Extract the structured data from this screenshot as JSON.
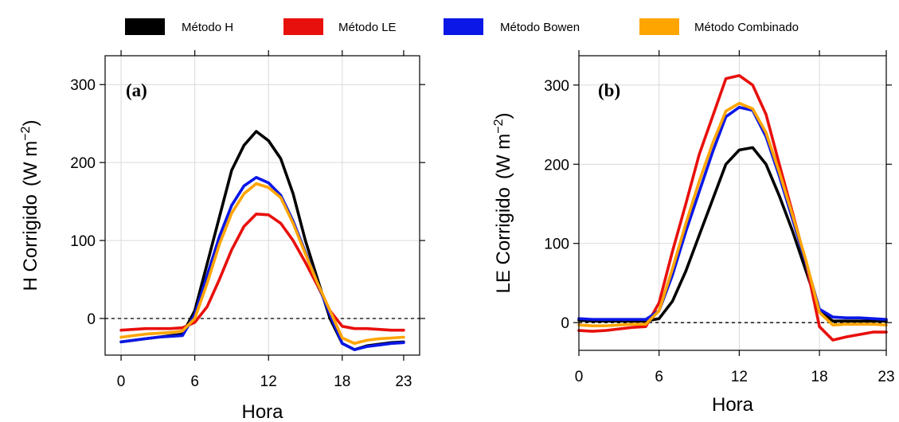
{
  "legend": [
    {
      "label": "Método H",
      "color": "#000000"
    },
    {
      "label": "Método LE",
      "color": "#e8100c"
    },
    {
      "label": "Método Bowen",
      "color": "#0a17e6"
    },
    {
      "label": "Método Combinado",
      "color": "#ffa500"
    }
  ],
  "chart_data": [
    {
      "type": "line",
      "panel_label": "(a)",
      "xlabel": "Hora",
      "ylabel_main": "H  Corrigido",
      "ylabel_unit": "(W m",
      "ylabel_exp": "−2",
      "ylabel_close": ")",
      "x": [
        0,
        1,
        2,
        3,
        4,
        5,
        6,
        7,
        8,
        9,
        10,
        11,
        12,
        13,
        14,
        15,
        16,
        17,
        18,
        19,
        20,
        21,
        22,
        23
      ],
      "xlim": [
        -1.3,
        24.3
      ],
      "ylim": [
        -47,
        337
      ],
      "xticks": [
        0,
        6,
        12,
        18,
        23
      ],
      "xtick_labels": [
        "0",
        "6",
        "12",
        "18",
        "23"
      ],
      "yticks": [
        0,
        100,
        200,
        300
      ],
      "ytick_labels": [
        "0",
        "100",
        "200",
        "300"
      ],
      "grid_x": [
        0,
        6,
        12,
        18
      ],
      "grid_y": [
        0,
        100,
        200,
        300
      ],
      "zero_line": true,
      "series": [
        {
          "name": "Método H",
          "color": "#000000",
          "values": [
            -30,
            -28,
            -26,
            -24,
            -22,
            -20,
            10,
            70,
            130,
            190,
            222,
            240,
            228,
            205,
            160,
            100,
            50,
            0,
            -32,
            -40,
            -35,
            -33,
            -31,
            -30
          ]
        },
        {
          "name": "Método LE",
          "color": "#e8100c",
          "values": [
            -15,
            -14,
            -13,
            -13,
            -13,
            -12,
            -5,
            15,
            50,
            88,
            118,
            134,
            133,
            122,
            100,
            72,
            42,
            10,
            -10,
            -13,
            -13,
            -14,
            -15,
            -15
          ]
        },
        {
          "name": "Método Bowen",
          "color": "#0a17e6",
          "values": [
            -30,
            -28,
            -26,
            -24,
            -23,
            -22,
            5,
            55,
            105,
            145,
            170,
            181,
            174,
            158,
            125,
            85,
            45,
            5,
            -32,
            -40,
            -36,
            -34,
            -32,
            -31
          ]
        },
        {
          "name": "Método Combinado",
          "color": "#ffa500",
          "values": [
            -24,
            -22,
            -20,
            -19,
            -18,
            -16,
            0,
            45,
            95,
            135,
            160,
            173,
            168,
            155,
            122,
            83,
            45,
            10,
            -25,
            -32,
            -28,
            -26,
            -25,
            -24
          ]
        }
      ]
    },
    {
      "type": "line",
      "panel_label": "(b)",
      "xlabel": "Hora",
      "ylabel_main": "LE  Corrigido",
      "ylabel_unit": "(W m",
      "ylabel_exp": "−2",
      "ylabel_close": ")",
      "x": [
        0,
        1,
        2,
        3,
        4,
        5,
        6,
        7,
        8,
        9,
        10,
        11,
        12,
        13,
        14,
        15,
        16,
        17,
        18,
        19,
        20,
        21,
        22,
        23
      ],
      "xlim": [
        0,
        23
      ],
      "ylim": [
        -35,
        337
      ],
      "xticks": [
        0,
        6,
        12,
        18,
        23
      ],
      "xtick_labels": [
        "0",
        "6",
        "12",
        "18",
        "23"
      ],
      "yticks": [
        0,
        100,
        200,
        300
      ],
      "ytick_labels": [
        "0",
        "100",
        "200",
        "300"
      ],
      "grid_x": [
        0,
        6,
        12,
        18
      ],
      "grid_y": [
        0,
        100,
        200,
        300
      ],
      "zero_line": true,
      "series": [
        {
          "name": "Método H",
          "color": "#000000",
          "values": [
            3,
            2,
            2,
            2,
            2,
            2,
            5,
            27,
            65,
            110,
            155,
            200,
            218,
            221,
            200,
            160,
            115,
            65,
            15,
            2,
            2,
            2,
            2,
            2
          ]
        },
        {
          "name": "Método LE",
          "color": "#e8100c",
          "values": [
            -10,
            -11,
            -10,
            -8,
            -6,
            -5,
            25,
            90,
            150,
            212,
            260,
            308,
            312,
            300,
            263,
            200,
            138,
            75,
            -5,
            -22,
            -18,
            -15,
            -12,
            -12
          ]
        },
        {
          "name": "Método Bowen",
          "color": "#0a17e6",
          "values": [
            5,
            4,
            4,
            4,
            4,
            4,
            15,
            60,
            115,
            165,
            215,
            260,
            272,
            268,
            235,
            185,
            130,
            75,
            17,
            7,
            6,
            6,
            5,
            4
          ]
        },
        {
          "name": "Método Combinado",
          "color": "#ffa500",
          "values": [
            -3,
            -4,
            -4,
            -3,
            -2,
            -2,
            15,
            68,
            125,
            178,
            226,
            267,
            277,
            270,
            240,
            190,
            135,
            78,
            13,
            -3,
            -2,
            -2,
            -2,
            -3
          ]
        }
      ]
    }
  ]
}
